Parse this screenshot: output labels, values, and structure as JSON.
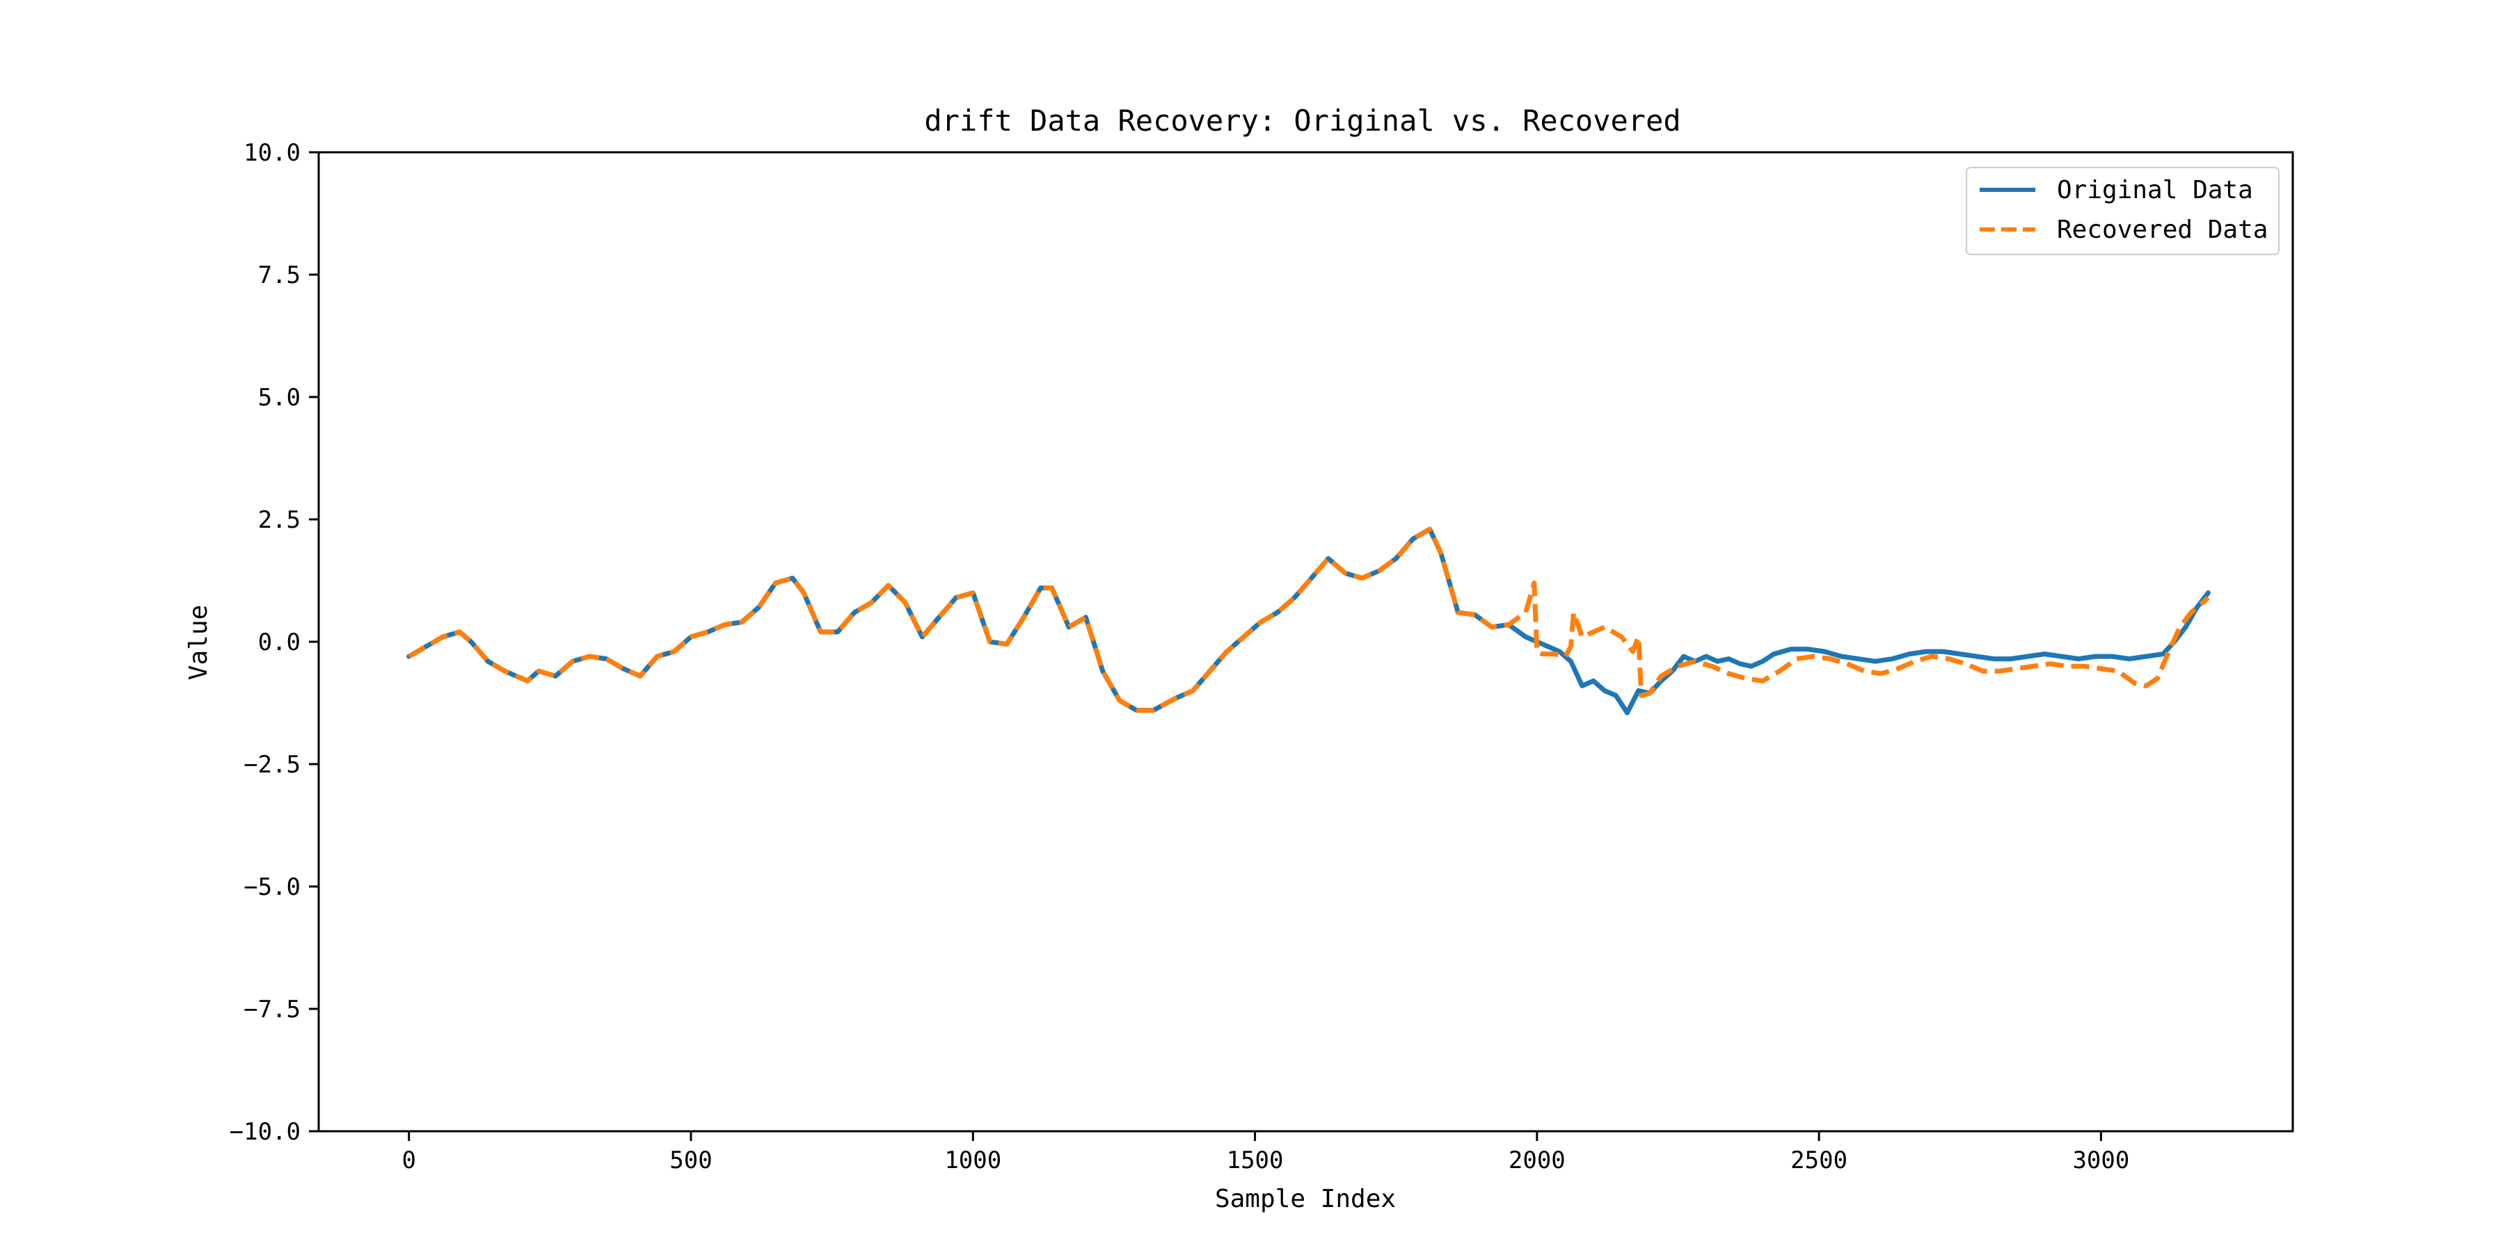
{
  "chart_data": {
    "type": "line",
    "title": "drift Data Recovery: Original vs. Recovered",
    "xlabel": "Sample Index",
    "ylabel": "Value",
    "xlim": [
      -160,
      3340
    ],
    "ylim": [
      -10.0,
      10.0
    ],
    "x_ticks": [
      0,
      500,
      1000,
      1500,
      2000,
      2500,
      3000
    ],
    "x_tick_labels": [
      "0",
      "500",
      "1000",
      "1500",
      "2000",
      "2500",
      "3000"
    ],
    "y_ticks": [
      10.0,
      7.5,
      5.0,
      2.5,
      0.0,
      -2.5,
      -5.0,
      -7.5,
      -10.0
    ],
    "y_tick_labels": [
      "10.0",
      "7.5",
      "5.0",
      "2.5",
      "0.0",
      "−2.5",
      "−5.0",
      "−7.5",
      "−10.0"
    ],
    "grid": false,
    "legend": {
      "position": "top-right"
    },
    "series": [
      {
        "name": "Original Data",
        "color": "#1f77b4",
        "style": "solid",
        "x": [
          0,
          30,
          60,
          90,
          110,
          140,
          170,
          210,
          230,
          260,
          290,
          320,
          350,
          380,
          410,
          440,
          470,
          500,
          530,
          560,
          590,
          620,
          650,
          680,
          700,
          730,
          760,
          790,
          820,
          850,
          880,
          910,
          940,
          970,
          1000,
          1030,
          1060,
          1090,
          1120,
          1140,
          1170,
          1200,
          1230,
          1260,
          1290,
          1320,
          1360,
          1390,
          1420,
          1450,
          1480,
          1510,
          1540,
          1570,
          1600,
          1630,
          1660,
          1690,
          1720,
          1750,
          1780,
          1810,
          1830,
          1860,
          1890,
          1920,
          1950,
          1980,
          2000,
          2020,
          2040,
          2060,
          2080,
          2100,
          2120,
          2140,
          2160,
          2180,
          2200,
          2220,
          2240,
          2260,
          2280,
          2300,
          2320,
          2340,
          2360,
          2380,
          2400,
          2420,
          2450,
          2480,
          2510,
          2540,
          2570,
          2600,
          2630,
          2660,
          2690,
          2720,
          2750,
          2780,
          2810,
          2840,
          2870,
          2900,
          2930,
          2960,
          2990,
          3020,
          3050,
          3080,
          3110,
          3130,
          3150,
          3170,
          3190
        ],
        "y": [
          -0.3,
          -0.1,
          0.1,
          0.2,
          0.0,
          -0.4,
          -0.6,
          -0.8,
          -0.6,
          -0.7,
          -0.4,
          -0.3,
          -0.35,
          -0.55,
          -0.7,
          -0.3,
          -0.2,
          0.1,
          0.2,
          0.35,
          0.4,
          0.7,
          1.2,
          1.3,
          1.0,
          0.2,
          0.2,
          0.6,
          0.8,
          1.15,
          0.8,
          0.1,
          0.5,
          0.9,
          1.0,
          0.0,
          -0.05,
          0.5,
          1.1,
          1.1,
          0.3,
          0.5,
          -0.6,
          -1.2,
          -1.4,
          -1.4,
          -1.15,
          -1.0,
          -0.6,
          -0.2,
          0.1,
          0.4,
          0.6,
          0.9,
          1.3,
          1.7,
          1.4,
          1.3,
          1.45,
          1.7,
          2.1,
          2.3,
          1.8,
          0.6,
          0.55,
          0.3,
          0.35,
          0.1,
          0.0,
          -0.1,
          -0.2,
          -0.4,
          -0.9,
          -0.8,
          -1.0,
          -1.1,
          -1.45,
          -1.0,
          -1.05,
          -0.8,
          -0.6,
          -0.3,
          -0.4,
          -0.3,
          -0.4,
          -0.35,
          -0.45,
          -0.5,
          -0.4,
          -0.25,
          -0.15,
          -0.15,
          -0.2,
          -0.3,
          -0.35,
          -0.4,
          -0.35,
          -0.25,
          -0.2,
          -0.2,
          -0.25,
          -0.3,
          -0.35,
          -0.35,
          -0.3,
          -0.25,
          -0.3,
          -0.35,
          -0.3,
          -0.3,
          -0.35,
          -0.3,
          -0.25,
          0.0,
          0.3,
          0.7,
          1.0
        ]
      },
      {
        "name": "Recovered Data",
        "color": "#ff7f0e",
        "style": "dashed",
        "x": [
          0,
          30,
          60,
          90,
          110,
          140,
          170,
          210,
          230,
          260,
          290,
          320,
          350,
          380,
          410,
          440,
          470,
          500,
          530,
          560,
          590,
          620,
          650,
          680,
          700,
          730,
          760,
          790,
          820,
          850,
          880,
          910,
          940,
          970,
          1000,
          1030,
          1060,
          1090,
          1120,
          1140,
          1170,
          1200,
          1230,
          1260,
          1290,
          1320,
          1360,
          1390,
          1420,
          1450,
          1480,
          1510,
          1540,
          1570,
          1600,
          1630,
          1660,
          1690,
          1720,
          1750,
          1780,
          1810,
          1830,
          1860,
          1890,
          1920,
          1950,
          1980,
          1995,
          2000,
          2010,
          2030,
          2050,
          2060,
          2065,
          2080,
          2100,
          2120,
          2150,
          2170,
          2180,
          2185,
          2200,
          2220,
          2250,
          2280,
          2310,
          2340,
          2370,
          2400,
          2430,
          2460,
          2490,
          2520,
          2550,
          2580,
          2610,
          2640,
          2670,
          2700,
          2730,
          2760,
          2790,
          2820,
          2850,
          2880,
          2910,
          2940,
          2970,
          3000,
          3030,
          3060,
          3080,
          3100,
          3120,
          3140,
          3160,
          3190
        ],
        "y": [
          -0.3,
          -0.1,
          0.1,
          0.2,
          0.0,
          -0.4,
          -0.6,
          -0.8,
          -0.6,
          -0.7,
          -0.4,
          -0.3,
          -0.35,
          -0.55,
          -0.7,
          -0.3,
          -0.2,
          0.1,
          0.2,
          0.35,
          0.4,
          0.7,
          1.2,
          1.3,
          1.0,
          0.2,
          0.2,
          0.6,
          0.8,
          1.15,
          0.8,
          0.1,
          0.5,
          0.9,
          1.0,
          0.0,
          -0.05,
          0.5,
          1.1,
          1.1,
          0.3,
          0.5,
          -0.6,
          -1.2,
          -1.4,
          -1.4,
          -1.15,
          -1.0,
          -0.6,
          -0.2,
          0.1,
          0.4,
          0.6,
          0.9,
          1.3,
          1.7,
          1.4,
          1.3,
          1.45,
          1.7,
          2.1,
          2.3,
          1.8,
          0.6,
          0.55,
          0.3,
          0.35,
          0.6,
          1.2,
          -0.2,
          -0.25,
          -0.25,
          -0.3,
          -0.1,
          0.6,
          0.1,
          0.2,
          0.3,
          0.1,
          -0.2,
          0.1,
          -1.1,
          -1.05,
          -0.7,
          -0.5,
          -0.4,
          -0.5,
          -0.65,
          -0.75,
          -0.8,
          -0.6,
          -0.35,
          -0.3,
          -0.35,
          -0.45,
          -0.6,
          -0.65,
          -0.55,
          -0.4,
          -0.3,
          -0.35,
          -0.45,
          -0.6,
          -0.6,
          -0.55,
          -0.5,
          -0.45,
          -0.5,
          -0.5,
          -0.55,
          -0.6,
          -0.85,
          -0.9,
          -0.75,
          -0.2,
          0.3,
          0.6,
          0.9
        ]
      }
    ]
  }
}
